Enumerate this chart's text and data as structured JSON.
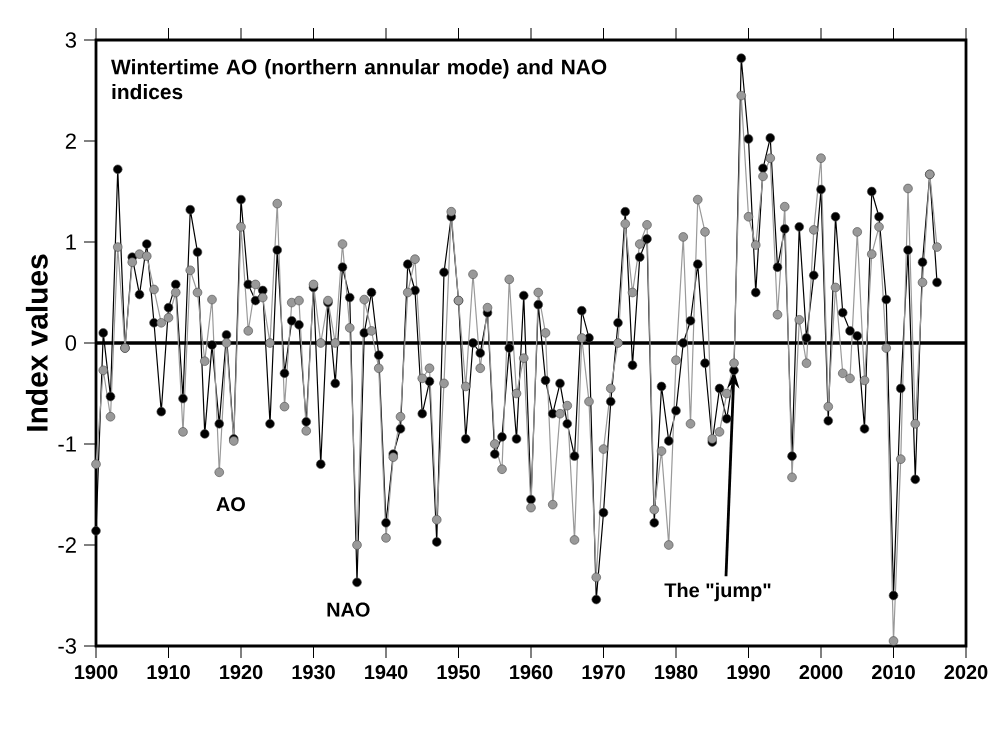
{
  "chart_data": {
    "type": "line",
    "title": "Wintertime AO (northern annular mode) and NAO indices",
    "ylabel": "Index values",
    "x": [
      1900,
      1901,
      1902,
      1903,
      1904,
      1905,
      1906,
      1907,
      1908,
      1909,
      1910,
      1911,
      1912,
      1913,
      1914,
      1915,
      1916,
      1917,
      1918,
      1919,
      1920,
      1921,
      1922,
      1923,
      1924,
      1925,
      1926,
      1927,
      1928,
      1929,
      1930,
      1931,
      1932,
      1933,
      1934,
      1935,
      1936,
      1937,
      1938,
      1939,
      1940,
      1941,
      1942,
      1943,
      1944,
      1945,
      1946,
      1947,
      1948,
      1949,
      1950,
      1951,
      1952,
      1953,
      1954,
      1955,
      1956,
      1957,
      1958,
      1959,
      1960,
      1961,
      1962,
      1963,
      1964,
      1965,
      1966,
      1967,
      1968,
      1969,
      1970,
      1971,
      1972,
      1973,
      1974,
      1975,
      1976,
      1977,
      1978,
      1979,
      1980,
      1981,
      1982,
      1983,
      1984,
      1985,
      1986,
      1987,
      1988,
      1989,
      1990,
      1991,
      1992,
      1993,
      1994,
      1995,
      1996,
      1997,
      1998,
      1999,
      2000,
      2001,
      2002,
      2003,
      2004,
      2005,
      2006,
      2007,
      2008,
      2009,
      2010,
      2011,
      2012,
      2013,
      2014,
      2015,
      2016
    ],
    "series": [
      {
        "name": "NAO",
        "color": "#000000",
        "values": [
          -1.86,
          0.1,
          -0.53,
          1.72,
          -0.05,
          0.85,
          0.48,
          0.98,
          0.2,
          -0.68,
          0.35,
          0.58,
          -0.55,
          1.32,
          0.9,
          -0.9,
          -0.02,
          -0.8,
          0.08,
          -0.95,
          1.42,
          0.58,
          0.42,
          0.52,
          -0.8,
          0.92,
          -0.3,
          0.22,
          0.18,
          -0.78,
          0.55,
          -1.2,
          0.4,
          -0.4,
          0.75,
          0.45,
          -2.37,
          0.1,
          0.5,
          -0.12,
          -1.78,
          -1.1,
          -0.85,
          0.78,
          0.52,
          -0.7,
          -0.38,
          -1.97,
          0.7,
          1.25,
          0.42,
          -0.95,
          0.0,
          -0.1,
          0.3,
          -1.1,
          -0.93,
          -0.05,
          -0.95,
          0.47,
          -1.55,
          0.38,
          -0.37,
          -0.7,
          -0.4,
          -0.8,
          -1.12,
          0.32,
          0.05,
          -2.54,
          -1.68,
          -0.58,
          0.2,
          1.3,
          -0.22,
          0.85,
          1.03,
          -1.78,
          -0.43,
          -0.97,
          -0.67,
          0.0,
          0.22,
          0.78,
          -0.2,
          -0.98,
          -0.45,
          -0.75,
          -0.27,
          2.82,
          2.02,
          0.5,
          1.73,
          2.03,
          0.75,
          1.13,
          -1.12,
          1.15,
          0.05,
          0.67,
          1.52,
          -0.77,
          1.25,
          0.3,
          0.12,
          0.07,
          -0.85,
          1.5,
          1.25,
          0.43,
          -2.5,
          -0.45,
          0.92,
          -1.35,
          0.8,
          1.67,
          0.6
        ]
      },
      {
        "name": "AO",
        "color": "#999999",
        "values": [
          -1.2,
          -0.27,
          -0.73,
          0.95,
          -0.05,
          0.8,
          0.88,
          0.86,
          0.53,
          0.2,
          0.25,
          0.5,
          -0.88,
          0.72,
          0.5,
          -0.18,
          0.43,
          -1.28,
          0.0,
          -0.97,
          1.15,
          0.12,
          0.58,
          0.45,
          0.0,
          1.38,
          -0.63,
          0.4,
          0.42,
          -0.87,
          0.58,
          0.0,
          0.42,
          0.0,
          0.98,
          0.15,
          -2.0,
          0.43,
          0.12,
          -0.25,
          -1.93,
          -1.13,
          -0.73,
          0.5,
          0.83,
          -0.35,
          -0.25,
          -1.75,
          -0.4,
          1.3,
          0.42,
          -0.43,
          0.68,
          -0.25,
          0.35,
          -1.0,
          -1.25,
          0.63,
          -0.5,
          -0.15,
          -1.63,
          0.5,
          0.1,
          -1.6,
          -0.7,
          -0.62,
          -1.95,
          0.05,
          -0.58,
          -2.32,
          -1.05,
          -0.45,
          0.0,
          1.18,
          0.5,
          0.98,
          1.17,
          -1.65,
          -1.07,
          -2.0,
          -0.17,
          1.05,
          -0.8,
          1.42,
          1.1,
          -0.95,
          -0.88,
          -0.5,
          -0.2,
          2.45,
          1.25,
          0.97,
          1.65,
          1.83,
          0.28,
          1.35,
          -1.33,
          0.23,
          -0.2,
          1.12,
          1.83,
          -0.63,
          0.55,
          -0.3,
          -0.35,
          1.1,
          -0.37,
          0.88,
          1.15,
          -0.05,
          -2.95,
          -1.15,
          1.53,
          -0.8,
          0.6,
          1.67,
          0.95
        ]
      }
    ],
    "xlim": [
      1900,
      2020
    ],
    "xticks": [
      1900,
      1910,
      1920,
      1930,
      1940,
      1950,
      1960,
      1970,
      1980,
      1990,
      2000,
      2010,
      2020
    ],
    "ylim": [
      -3,
      3
    ],
    "yticks": [
      -3,
      -2,
      -1,
      0,
      1,
      2,
      3
    ],
    "ref_lines": [
      {
        "axis": "y",
        "value": 0,
        "color": "#000000"
      }
    ],
    "annotations": [
      {
        "text": "The \"jump\"",
        "x": 1988,
        "y": -0.27
      }
    ],
    "marker": "circle",
    "line_style": "solid",
    "grid": false
  }
}
